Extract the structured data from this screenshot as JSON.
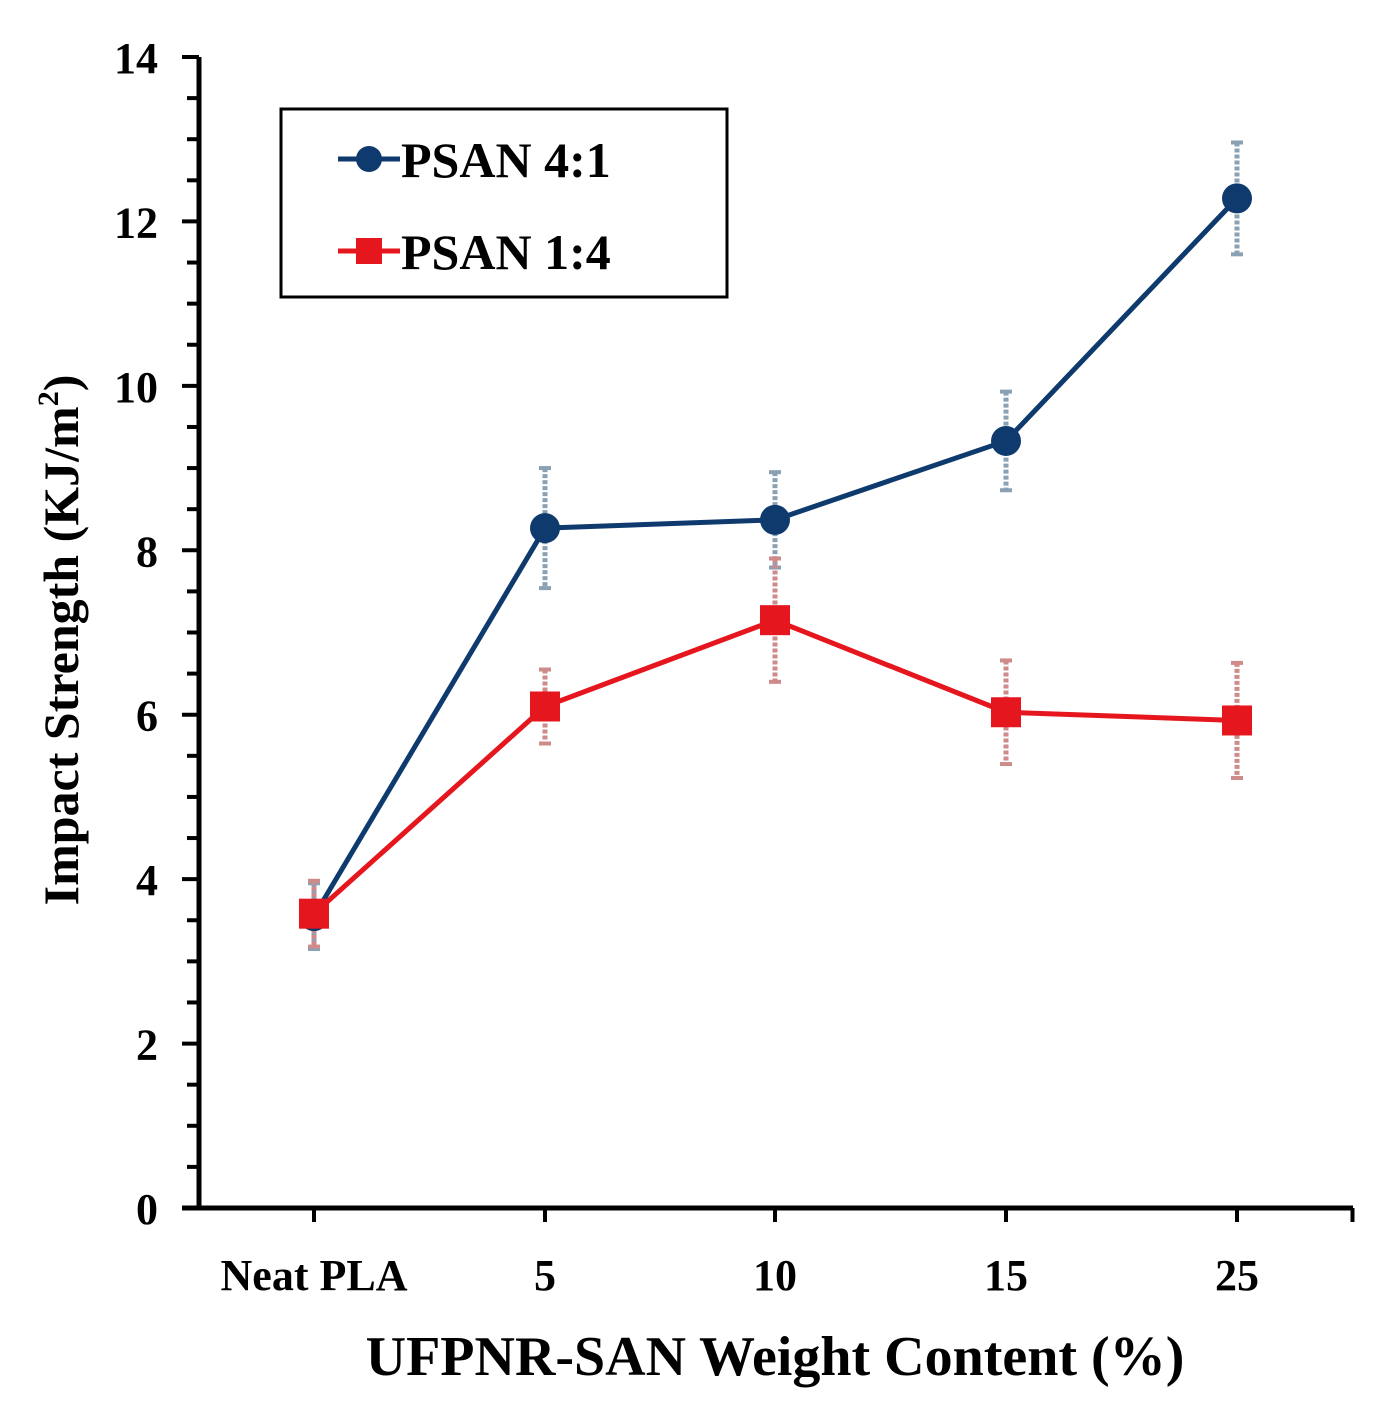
{
  "chart_data": {
    "type": "line",
    "categories": [
      "Neat PLA",
      "5",
      "10",
      "15",
      "25"
    ],
    "series": [
      {
        "name": "PSAN 4:1",
        "marker": "circle",
        "color": "#0e3a6e",
        "error_color": "#8aa1b4",
        "values": [
          3.55,
          8.27,
          8.37,
          9.33,
          12.28
        ],
        "errors": [
          0.4,
          0.73,
          0.58,
          0.6,
          0.68
        ]
      },
      {
        "name": "PSAN 1:4",
        "marker": "square",
        "color": "#e5161d",
        "error_color": "#cf8a8a",
        "values": [
          3.58,
          6.1,
          7.15,
          6.03,
          5.93
        ],
        "errors": [
          0.4,
          0.45,
          0.75,
          0.63,
          0.7
        ]
      }
    ],
    "title": "",
    "xlabel": "UFPNR-SAN Weight Content (%)",
    "ylabel_main": "Impact Strength (KJ/m",
    "ylabel_sup": "2",
    "ylabel_close": ")",
    "ylim": [
      0,
      14
    ],
    "yticks": [
      "0",
      "2",
      "4",
      "6",
      "8",
      "10",
      "12",
      "14"
    ],
    "grid": false,
    "legend_position": "top-left"
  }
}
